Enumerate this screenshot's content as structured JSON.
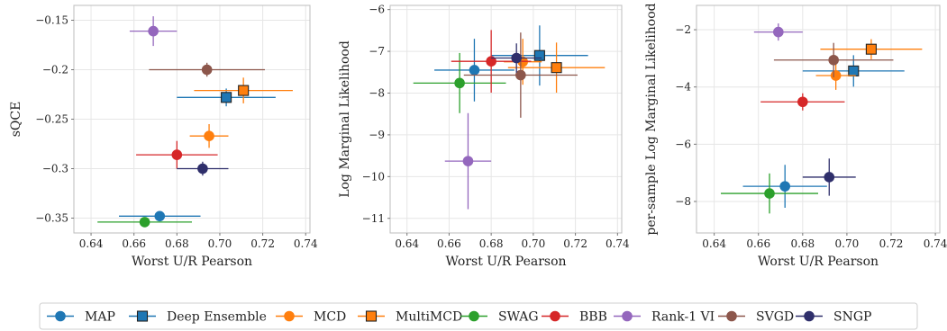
{
  "chart_data": [
    {
      "type": "scatter",
      "xlabel": "Worst U/R Pearson",
      "ylabel": "sQCE",
      "xlim": [
        0.632,
        0.742
      ],
      "ylim": [
        -0.365,
        -0.135
      ],
      "xticks": [
        0.64,
        0.66,
        0.68,
        0.7,
        0.72,
        0.74
      ],
      "xtick_labels": [
        "0.64",
        "0.66",
        "0.68",
        "0.70",
        "0.72",
        "0.74"
      ],
      "yticks": [
        -0.35,
        -0.3,
        -0.25,
        -0.2,
        -0.15
      ],
      "ytick_labels": [
        "−0.35",
        "−0.3",
        "−0.25",
        "−0.2",
        "−0.15"
      ],
      "grid": true,
      "points": [
        {
          "method": "MAP",
          "x": 0.672,
          "y": -0.348,
          "xerr": 0.019,
          "yerr": 0.004
        },
        {
          "method": "Deep Ensemble",
          "x": 0.703,
          "y": -0.228,
          "xerr": 0.023,
          "yerr": 0.009
        },
        {
          "method": "MCD",
          "x": 0.695,
          "y": -0.267,
          "xerr": 0.009,
          "yerr": 0.012
        },
        {
          "method": "MultiMCD",
          "x": 0.711,
          "y": -0.221,
          "xerr": 0.023,
          "yerr": 0.013
        },
        {
          "method": "SWAG",
          "x": 0.665,
          "y": -0.354,
          "xerr": 0.022,
          "yerr": 0.003
        },
        {
          "method": "BBB",
          "x": 0.68,
          "y": -0.286,
          "xerr": 0.019,
          "yerr": 0.014
        },
        {
          "method": "Rank-1 VI",
          "x": 0.669,
          "y": -0.161,
          "xerr": 0.011,
          "yerr": 0.015
        },
        {
          "method": "SVGD",
          "x": 0.694,
          "y": -0.2,
          "xerr": 0.027,
          "yerr": 0.007
        },
        {
          "method": "SNGP",
          "x": 0.692,
          "y": -0.3,
          "xerr": 0.012,
          "yerr": 0.007
        }
      ]
    },
    {
      "type": "scatter",
      "xlabel": "Worst U/R Pearson",
      "ylabel": "Log Marginal Likelihood",
      "xlim": [
        0.632,
        0.742
      ],
      "ylim": [
        -11.35,
        -5.9
      ],
      "xticks": [
        0.64,
        0.66,
        0.68,
        0.7,
        0.72,
        0.74
      ],
      "xtick_labels": [
        "0.64",
        "0.66",
        "0.68",
        "0.70",
        "0.72",
        "0.74"
      ],
      "yticks": [
        -11,
        -10,
        -9,
        -8,
        -7,
        -6
      ],
      "ytick_labels": [
        "−11",
        "−10",
        "−9",
        "−8",
        "−7",
        "−6"
      ],
      "grid": true,
      "points": [
        {
          "method": "MAP",
          "x": 0.672,
          "y": -7.45,
          "xerr": 0.019,
          "yerr": 0.75
        },
        {
          "method": "Deep Ensemble",
          "x": 0.703,
          "y": -7.1,
          "xerr": 0.023,
          "yerr": 0.72
        },
        {
          "method": "MCD",
          "x": 0.695,
          "y": -7.25,
          "xerr": 0.009,
          "yerr": 0.55
        },
        {
          "method": "MultiMCD",
          "x": 0.711,
          "y": -7.39,
          "xerr": 0.023,
          "yerr": 0.6
        },
        {
          "method": "SWAG",
          "x": 0.665,
          "y": -7.76,
          "xerr": 0.022,
          "yerr": 0.72
        },
        {
          "method": "BBB",
          "x": 0.68,
          "y": -7.24,
          "xerr": 0.019,
          "yerr": 0.75
        },
        {
          "method": "Rank-1 VI",
          "x": 0.669,
          "y": -9.63,
          "xerr": 0.011,
          "yerr": 1.15
        },
        {
          "method": "SVGD",
          "x": 0.694,
          "y": -7.57,
          "xerr": 0.027,
          "yerr": 1.02
        },
        {
          "method": "SNGP",
          "x": 0.692,
          "y": -7.16,
          "xerr": 0.012,
          "yerr": 0.35
        }
      ]
    },
    {
      "type": "scatter",
      "xlabel": "Worst U/R Pearson",
      "ylabel": "per-sample Log Marginal Likelihood",
      "xlim": [
        0.632,
        0.742
      ],
      "ylim": [
        -9.1,
        -1.15
      ],
      "xticks": [
        0.64,
        0.66,
        0.68,
        0.7,
        0.72,
        0.74
      ],
      "xtick_labels": [
        "0.64",
        "0.66",
        "0.68",
        "0.70",
        "0.72",
        "0.74"
      ],
      "yticks": [
        -8,
        -6,
        -4,
        -2
      ],
      "ytick_labels": [
        "−8",
        "−6",
        "−4",
        "−2"
      ],
      "grid": true,
      "points": [
        {
          "method": "MAP",
          "x": 0.672,
          "y": -7.47,
          "xerr": 0.019,
          "yerr": 0.75
        },
        {
          "method": "Deep Ensemble",
          "x": 0.703,
          "y": -3.44,
          "xerr": 0.023,
          "yerr": 0.55
        },
        {
          "method": "MCD",
          "x": 0.695,
          "y": -3.6,
          "xerr": 0.009,
          "yerr": 0.5
        },
        {
          "method": "MultiMCD",
          "x": 0.711,
          "y": -2.68,
          "xerr": 0.023,
          "yerr": 0.35
        },
        {
          "method": "SWAG",
          "x": 0.665,
          "y": -7.72,
          "xerr": 0.022,
          "yerr": 0.7
        },
        {
          "method": "BBB",
          "x": 0.68,
          "y": -4.52,
          "xerr": 0.019,
          "yerr": 0.3
        },
        {
          "method": "Rank-1 VI",
          "x": 0.669,
          "y": -2.08,
          "xerr": 0.011,
          "yerr": 0.3
        },
        {
          "method": "SVGD",
          "x": 0.694,
          "y": -3.06,
          "xerr": 0.027,
          "yerr": 0.6
        },
        {
          "method": "SNGP",
          "x": 0.692,
          "y": -7.15,
          "xerr": 0.012,
          "yerr": 0.65
        }
      ]
    }
  ],
  "legend": {
    "placement": "bottom-center",
    "entries": [
      {
        "label": "MAP",
        "color": "#1f77b4",
        "marker": "circle"
      },
      {
        "label": "Deep Ensemble",
        "color": "#1f77b4",
        "marker": "square"
      },
      {
        "label": "MCD",
        "color": "#ff7f0e",
        "marker": "circle"
      },
      {
        "label": "MultiMCD",
        "color": "#ff7f0e",
        "marker": "square"
      },
      {
        "label": "SWAG",
        "color": "#2ca02c",
        "marker": "circle"
      },
      {
        "label": "BBB",
        "color": "#d62728",
        "marker": "circle"
      },
      {
        "label": "Rank-1 VI",
        "color": "#9467bd",
        "marker": "circle"
      },
      {
        "label": "SVGD",
        "color": "#8c564b",
        "marker": "circle"
      },
      {
        "label": "SNGP",
        "color": "#2f2f6b",
        "marker": "circle"
      }
    ]
  }
}
